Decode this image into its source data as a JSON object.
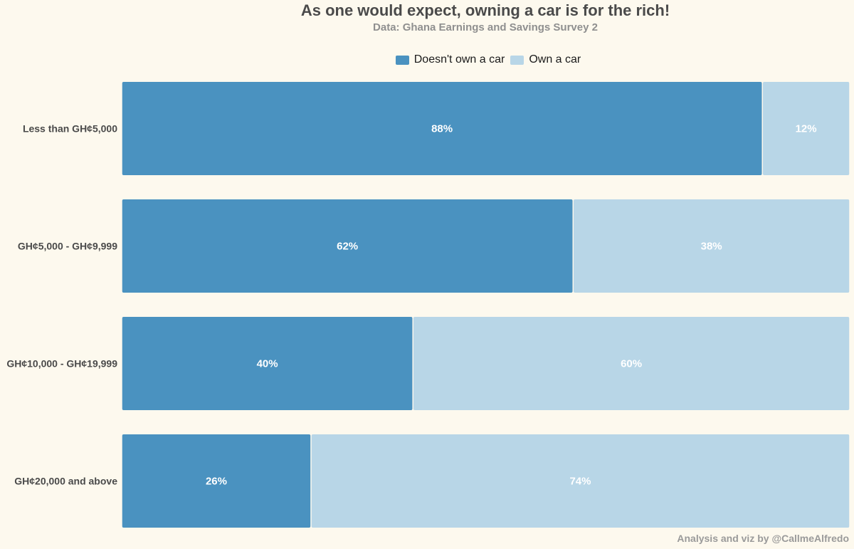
{
  "chart_data": {
    "type": "bar",
    "orientation": "horizontal",
    "stacked": true,
    "normalized": true,
    "title": "As one would expect, owning a car is for the rich!",
    "subtitle": "Data: Ghana Earnings and Savings Survey 2",
    "caption": "Analysis and viz by @CallmeAlfredo",
    "categories": [
      "Less than GH¢5,000",
      "GH¢5,000 - GH¢9,999",
      "GH¢10,000 - GH¢19,999",
      "GH¢20,000 and above"
    ],
    "series": [
      {
        "name": "Doesn't own a car",
        "values": [
          88,
          62,
          40,
          26
        ],
        "labels": [
          "88%",
          "62%",
          "40%",
          "26%"
        ],
        "color": "#4a92c0"
      },
      {
        "name": "Own a car",
        "values": [
          12,
          38,
          60,
          74
        ],
        "labels": [
          "12%",
          "38%",
          "60%",
          "74%"
        ],
        "color": "#b8d6e7"
      }
    ],
    "xlim": [
      0,
      100
    ],
    "legend_position": "top",
    "grid": false
  }
}
